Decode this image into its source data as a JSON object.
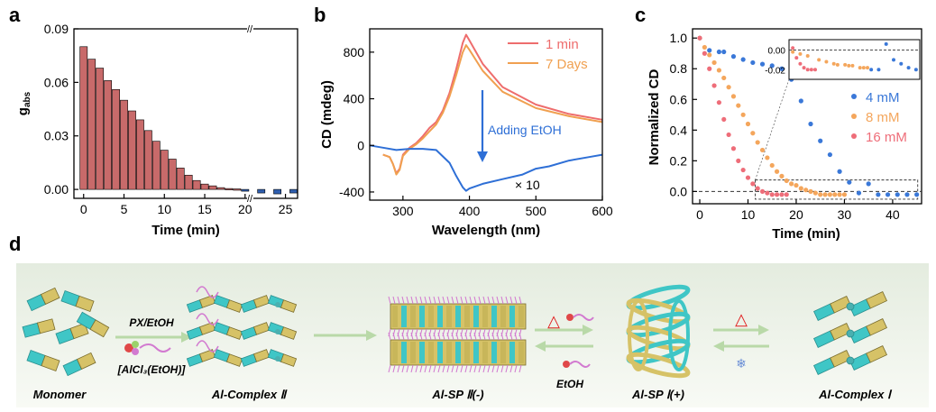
{
  "panel_labels": {
    "a": "a",
    "b": "b",
    "c": "c",
    "d": "d"
  },
  "colors": {
    "red_bar": "#c86a6a",
    "blue_bar": "#2f5fb0",
    "red_line": "#ee6d6d",
    "orange_line": "#f0a050",
    "blue_line": "#2e6fd6",
    "orange_dot": "#f4a65c",
    "red_dot": "#ee6d79",
    "blue_dot": "#3a78d8",
    "arrow_green": "#c8e2b8",
    "delta_red": "#e02020"
  },
  "chart_data": [
    {
      "type": "bar",
      "panel": "a",
      "xlabel": "Time (min)",
      "ylabel_main": "g",
      "ylabel_sub": "abs",
      "ylim": [
        -0.005,
        0.09
      ],
      "xlim": [
        -1.2,
        26.5
      ],
      "yticks": [
        "0.00",
        "0.03",
        "0.06",
        "0.09"
      ],
      "xticks": [
        "0",
        "5",
        "10",
        "15",
        "20",
        "25"
      ],
      "axis_break": "//",
      "x": [
        0,
        1,
        2,
        3,
        4,
        5,
        6,
        7,
        8,
        9,
        10,
        11,
        12,
        13,
        14,
        15,
        16,
        17,
        18,
        19,
        20,
        22,
        24,
        26
      ],
      "values": [
        0.08,
        0.073,
        0.068,
        0.061,
        0.056,
        0.05,
        0.044,
        0.039,
        0.033,
        0.027,
        0.022,
        0.017,
        0.012,
        0.008,
        0.005,
        0.003,
        0.002,
        0.001,
        0.0005,
        0.0003,
        -0.001,
        -0.002,
        -0.0025,
        -0.002
      ]
    },
    {
      "type": "line",
      "panel": "b",
      "xlabel": "Wavelength (nm)",
      "ylabel": "CD (mdeg)",
      "xlim": [
        250,
        600
      ],
      "ylim": [
        -470,
        1000
      ],
      "xticks": [
        "300",
        "400",
        "500",
        "600"
      ],
      "yticks": [
        "-400",
        "0",
        "400",
        "800"
      ],
      "annotation": "Adding EtOH",
      "multiplier": "× 10",
      "series": [
        {
          "name": "1 min",
          "color": "#ee6d6d",
          "x": [
            270,
            280,
            285,
            290,
            295,
            300,
            310,
            320,
            330,
            340,
            350,
            360,
            370,
            380,
            390,
            395,
            400,
            420,
            450,
            500,
            550,
            600
          ],
          "y": [
            -80,
            -100,
            -160,
            -240,
            -200,
            -80,
            -20,
            20,
            80,
            150,
            200,
            300,
            450,
            650,
            880,
            950,
            900,
            700,
            500,
            350,
            270,
            220
          ]
        },
        {
          "name": "7 Days",
          "color": "#f0a050",
          "x": [
            270,
            280,
            285,
            290,
            295,
            300,
            310,
            320,
            330,
            340,
            350,
            360,
            370,
            380,
            390,
            395,
            400,
            420,
            450,
            500,
            550,
            600
          ],
          "y": [
            -80,
            -100,
            -160,
            -250,
            -210,
            -90,
            -30,
            10,
            60,
            120,
            180,
            280,
            420,
            600,
            800,
            860,
            820,
            640,
            460,
            320,
            250,
            200
          ]
        },
        {
          "name": "×10 (EtOH)",
          "color": "#2e6fd6",
          "x": [
            250,
            270,
            290,
            310,
            330,
            350,
            370,
            380,
            390,
            395,
            400,
            420,
            450,
            480,
            500,
            520,
            550,
            580,
            600
          ],
          "y": [
            0,
            -20,
            -40,
            -30,
            -30,
            -40,
            -150,
            -260,
            -360,
            -390,
            -370,
            -330,
            -290,
            -250,
            -200,
            -180,
            -130,
            -100,
            -80
          ]
        }
      ]
    },
    {
      "type": "scatter",
      "panel": "c",
      "xlabel": "Time (min)",
      "ylabel": "Normalized CD",
      "xlim": [
        -1.5,
        46
      ],
      "ylim": [
        -0.08,
        1.06
      ],
      "xticks": [
        "0",
        "10",
        "20",
        "30",
        "40"
      ],
      "yticks": [
        "0.0",
        "0.2",
        "0.4",
        "0.6",
        "0.8",
        "1.0"
      ],
      "inset_yticks": [
        "0.00",
        "-0.02"
      ],
      "series": [
        {
          "name": "4 mM",
          "color": "#3a78d8",
          "x": [
            0,
            2,
            4,
            5,
            7,
            9,
            11,
            13,
            15,
            17,
            19,
            21,
            23,
            25,
            27,
            29,
            31,
            33,
            35,
            37,
            39,
            41,
            43,
            45
          ],
          "y": [
            1.0,
            0.92,
            0.91,
            0.91,
            0.88,
            0.86,
            0.84,
            0.83,
            0.82,
            0.8,
            0.73,
            0.59,
            0.44,
            0.33,
            0.24,
            0.13,
            0.06,
            -0.01,
            0.05,
            -0.02,
            -0.02,
            -0.02,
            -0.02,
            -0.02
          ]
        },
        {
          "name": "8 mM",
          "color": "#f4a65c",
          "x": [
            0,
            1,
            2,
            3,
            4,
            5,
            6,
            7,
            8,
            9,
            10,
            11,
            12,
            13,
            14,
            15,
            16,
            17,
            18,
            19,
            20,
            21,
            22,
            23,
            24,
            25,
            26,
            27,
            28,
            29,
            30
          ],
          "y": [
            1.0,
            0.94,
            0.89,
            0.84,
            0.79,
            0.74,
            0.68,
            0.62,
            0.56,
            0.5,
            0.44,
            0.38,
            0.32,
            0.27,
            0.22,
            0.17,
            0.13,
            0.1,
            0.07,
            0.05,
            0.04,
            0.02,
            0.01,
            0.0,
            -0.01,
            -0.02,
            -0.02,
            -0.02,
            -0.02,
            -0.02,
            -0.02
          ]
        },
        {
          "name": "16 mM",
          "color": "#ee6d79",
          "x": [
            0,
            1,
            2,
            3,
            4,
            5,
            6,
            7,
            8,
            9,
            10,
            11,
            12,
            13,
            14,
            15,
            16,
            17,
            18
          ],
          "y": [
            1.0,
            0.9,
            0.8,
            0.69,
            0.58,
            0.47,
            0.37,
            0.28,
            0.2,
            0.14,
            0.09,
            0.05,
            0.02,
            0.0,
            -0.01,
            -0.02,
            -0.02,
            -0.02,
            -0.02
          ]
        }
      ]
    }
  ],
  "scheme": {
    "stages": [
      "Monomer",
      "Al-Complex Ⅱ",
      "Al-SP Ⅱ(-)",
      "Al-SP Ⅰ(+)",
      "Al-Complex Ⅰ"
    ],
    "reagent_top": "PX/EtOH",
    "reagent_bottom": "[AlCl₃(EtOH)]",
    "etoh_label": "EtOH",
    "delta": "△",
    "cool": "❄"
  }
}
